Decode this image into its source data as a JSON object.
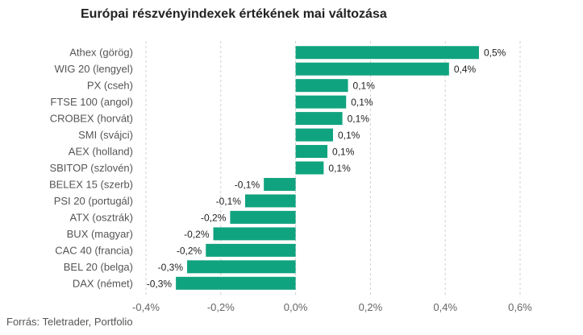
{
  "chart_data": {
    "type": "bar",
    "orientation": "horizontal",
    "title": "Európai részvényindexek értékének mai változása",
    "source": "Forrás: Teletrader, Portfolio",
    "bar_color": "#10a37f",
    "categories": [
      "Athex (görög)",
      "WIG 20 (lengyel)",
      "PX (cseh)",
      "FTSE 100 (angol)",
      "CROBEX (horvát)",
      "SMI (svájci)",
      "AEX (holland)",
      "SBITOP (szlovén)",
      "BELEX 15 (szerb)",
      "PSI 20 (portugál)",
      "ATX (osztrák)",
      "BUX (magyar)",
      "CAC 40 (francia)",
      "BEL 20 (belga)",
      "DAX (német)"
    ],
    "values": [
      0.49,
      0.41,
      0.14,
      0.135,
      0.125,
      0.1,
      0.085,
      0.075,
      -0.085,
      -0.135,
      -0.175,
      -0.22,
      -0.24,
      -0.29,
      -0.32
    ],
    "value_labels": [
      "0,5%",
      "0,4%",
      "0,1%",
      "0,1%",
      "0,1%",
      "0,1%",
      "0,1%",
      "0,1%",
      "-0,1%",
      "-0,1%",
      "-0,2%",
      "-0,2%",
      "-0,2%",
      "-0,3%",
      "-0,3%"
    ],
    "xlim": [
      -0.4,
      0.6
    ],
    "x_ticks": [
      -0.4,
      -0.2,
      0,
      0.2,
      0.4,
      0.6
    ],
    "x_tick_labels": [
      "-0,4%",
      "-0,2%",
      "0,0%",
      "0,2%",
      "0,4%",
      "0,6%"
    ],
    "grid": "vertical dashed"
  }
}
